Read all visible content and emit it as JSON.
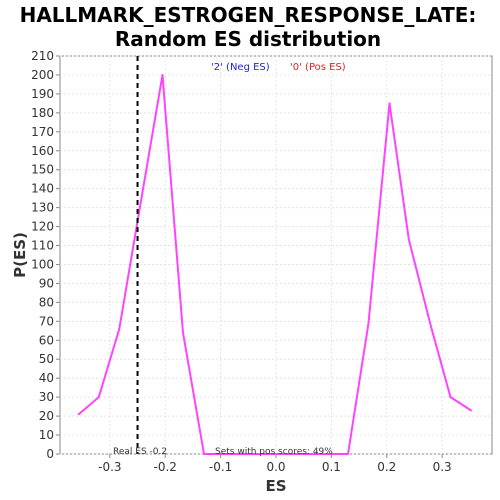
{
  "chart_data": {
    "type": "line",
    "title_line1": "HALLMARK_ESTROGEN_RESPONSE_LATE:",
    "title_line2": "Random ES distribution",
    "xlabel": "ES",
    "ylabel": "P(ES)",
    "xlim": [
      -0.39,
      0.39
    ],
    "ylim": [
      0,
      210
    ],
    "x_ticks": [
      -0.3,
      -0.2,
      -0.1,
      0.0,
      0.1,
      0.2,
      0.3
    ],
    "x_tick_labels": [
      "-0.3",
      "-0.2",
      "-0.1",
      "0.0",
      "0.1",
      "0.2",
      "0.3"
    ],
    "y_ticks": [
      0,
      10,
      20,
      30,
      40,
      50,
      60,
      70,
      80,
      90,
      100,
      110,
      120,
      130,
      140,
      150,
      160,
      170,
      180,
      190,
      200,
      210
    ],
    "grid": true,
    "series": [
      {
        "color": "#ff44ff",
        "x": [
          -0.356,
          -0.32,
          -0.283,
          -0.247,
          -0.205,
          -0.168,
          -0.13,
          -0.095,
          -0.06,
          -0.02,
          0.02,
          0.06,
          0.095,
          0.13,
          0.167,
          0.205,
          0.24,
          0.28,
          0.315,
          0.352
        ],
        "y": [
          21,
          30,
          66,
          128,
          200,
          64,
          0,
          0,
          0,
          0,
          0,
          0,
          0,
          0,
          69,
          185,
          113,
          67,
          30,
          23
        ]
      }
    ],
    "real_es": -0.25,
    "real_es_label": "Real ES -0.2",
    "pos_scores_label": "Sets with pos scores: 49%",
    "legend": [
      {
        "label": "'2' (Neg ES)",
        "color": "#2020e0"
      },
      {
        "label": "'0' (Pos ES)",
        "color": "#e02020"
      }
    ],
    "legend_position": "top-center"
  }
}
